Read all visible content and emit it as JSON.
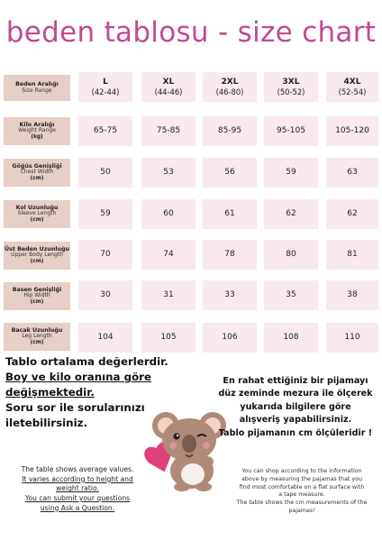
{
  "title": "beden tablosu - size chart",
  "rows": [
    {
      "tr": "Beden Aralığı",
      "en": "Size Range",
      "unit": ""
    },
    {
      "tr": "Kilo Aralığı",
      "en": "Weight Range",
      "unit": "(kg)"
    },
    {
      "tr": "Göğüs Genişliği",
      "en": "Chest Width",
      "unit": "(cm)"
    },
    {
      "tr": "Kol Uzunluğu",
      "en": "Sleeve Length",
      "unit": "(cm)"
    },
    {
      "tr": "Üst Beden Uzunluğu",
      "en": "Upper Body Length",
      "unit": "(cm)"
    },
    {
      "tr": "Basen Genişliği",
      "en": "Hip Width",
      "unit": "(cm)"
    },
    {
      "tr": "Bacak Uzunluğu",
      "en": "Leg Length",
      "unit": "(cm)"
    }
  ],
  "sizes": [
    {
      "size": "L",
      "range": "(42-44)",
      "weight": "65-75",
      "chest": "50",
      "sleeve": "59",
      "upper": "70",
      "hip": "30",
      "leg": "104"
    },
    {
      "size": "XL",
      "range": "(44-46)",
      "weight": "75-85",
      "chest": "53",
      "sleeve": "60",
      "upper": "74",
      "hip": "31",
      "leg": "105"
    },
    {
      "size": "2XL",
      "range": "(46-80)",
      "weight": "85-95",
      "chest": "56",
      "sleeve": "61",
      "upper": "78",
      "hip": "33",
      "leg": "106"
    },
    {
      "size": "3XL",
      "range": "(50-52)",
      "weight": "95-105",
      "chest": "59",
      "sleeve": "62",
      "upper": "80",
      "hip": "35",
      "leg": "108"
    },
    {
      "size": "4XL",
      "range": "(52-54)",
      "weight": "105-120",
      "chest": "63",
      "sleeve": "62",
      "upper": "81",
      "hip": "38",
      "leg": "110"
    }
  ],
  "notes": {
    "tr_left_1": "Tablo ortalama değerlerdir.",
    "tr_left_2": "Boy ve kilo oranına göre",
    "tr_left_3": "değişmektedir.",
    "tr_left_4": "Soru sor ile sorularınızı",
    "tr_left_5": "iletebilirsiniz.",
    "en_left_1": "The table shows average values.",
    "en_left_2": "It varies according to height and",
    "en_left_3": "weight ratio.",
    "en_left_4": "You can submit your questions",
    "en_left_5": "using Ask a Question.",
    "tr_right_1": "En rahat ettiğiniz bir pijamayı",
    "tr_right_2": "düz zeminde mezura ile ölçerek",
    "tr_right_3": "yukarıda bilgilere göre",
    "tr_right_4": "alışveriş yapabilirsiniz.",
    "tr_right_5": "Tablo pijamanın cm ölçüleridir !",
    "en_right_1": "You can shop according to the information",
    "en_right_2": "above by measuring the pajamas that you",
    "en_right_3": "find most comfortable on a flat surface with",
    "en_right_4": "a tape measure.",
    "en_right_5": "The table shows the cm measurements of the",
    "en_right_6": "pajamas!"
  },
  "illustration": {
    "icon": "koala-with-heart-icon"
  },
  "colors": {
    "title": "#c24a93",
    "label_bg": "#e6cfc6",
    "cell_bg": "#f7e9ee"
  }
}
